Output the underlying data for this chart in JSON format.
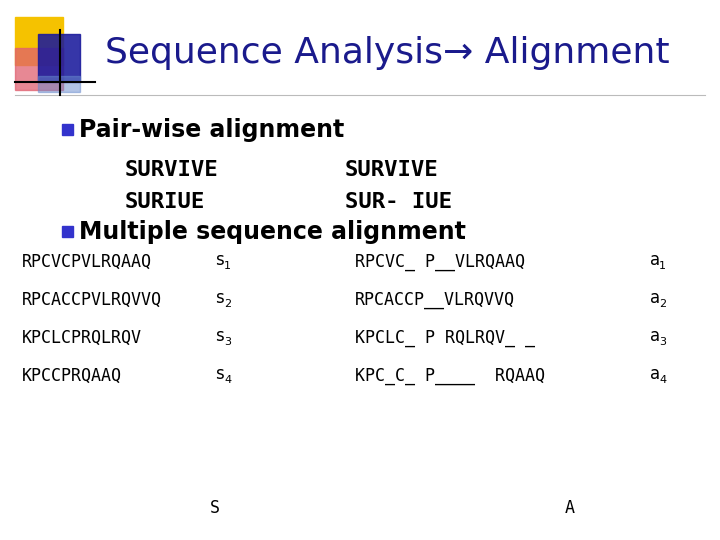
{
  "title": "Sequence Analysis→ Alignment",
  "title_color": "#1a1a8c",
  "title_fontsize": 26,
  "bg_color": "#ffffff",
  "bullet_color": "#3333cc",
  "bullet1": "Pair-wise alignment",
  "survive_left1": "SURVIVE",
  "survive_left2": "SURIUE",
  "survive_right1": "SURVIVE",
  "survive_right2": "SUR- IUE",
  "bullet2": "Multiple sequence alignment",
  "seq_color": "#000000",
  "seq_fontsize": 12,
  "bullet_fontsize": 17,
  "survive_fontsize": 16,
  "row_texts": [
    [
      "RPCVCPVLRQAAQ",
      "s",
      "1",
      "RPCVC_ P__VLRQAAQ",
      "a",
      "1"
    ],
    [
      "RPCACCPVLRQVVQ",
      "s",
      "2",
      "RPCACCP__VLRQVVQ",
      "a",
      "2"
    ],
    [
      "KPCLCPRQLRQV",
      "s",
      "3",
      "KPCLC_ P RQLRQV_ _",
      "a",
      "3"
    ],
    [
      "KPCCPRQAAQ",
      "s",
      "4",
      "KPC_C_ P____  RQAAQ",
      "a",
      "4"
    ]
  ],
  "footer_left": "S",
  "footer_right": "A",
  "logo_yellow": "#f5c200",
  "logo_red": "#e06070",
  "logo_blue_dark": "#1a1a9c",
  "logo_blue_light": "#6688cc"
}
